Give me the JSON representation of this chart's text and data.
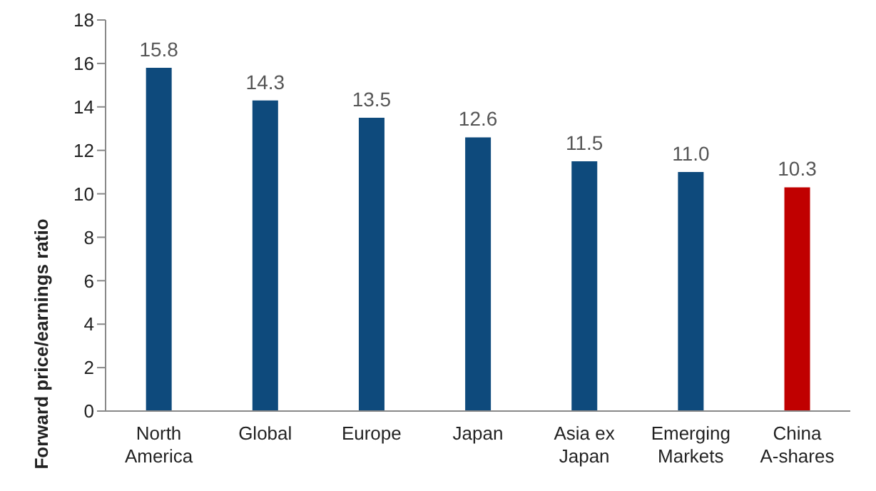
{
  "chart_data": {
    "type": "bar",
    "ylabel": "Forward price/earnings ratio",
    "categories": [
      "North America",
      "Global",
      "Europe",
      "Japan",
      "Asia ex Japan",
      "Emerging Markets",
      "China A-shares"
    ],
    "values": [
      15.8,
      14.3,
      13.5,
      12.6,
      11.5,
      11.0,
      10.3
    ],
    "colors": [
      "#0e4a7c",
      "#0e4a7c",
      "#0e4a7c",
      "#0e4a7c",
      "#0e4a7c",
      "#0e4a7c",
      "#c00000"
    ],
    "value_labels": [
      "15.8",
      "14.3",
      "13.5",
      "12.6",
      "11.5",
      "11.0",
      "10.3"
    ],
    "ylim": [
      0,
      18
    ],
    "yticks": [
      0,
      2,
      4,
      6,
      8,
      10,
      12,
      14,
      16,
      18
    ],
    "grid": false,
    "legend": false
  }
}
